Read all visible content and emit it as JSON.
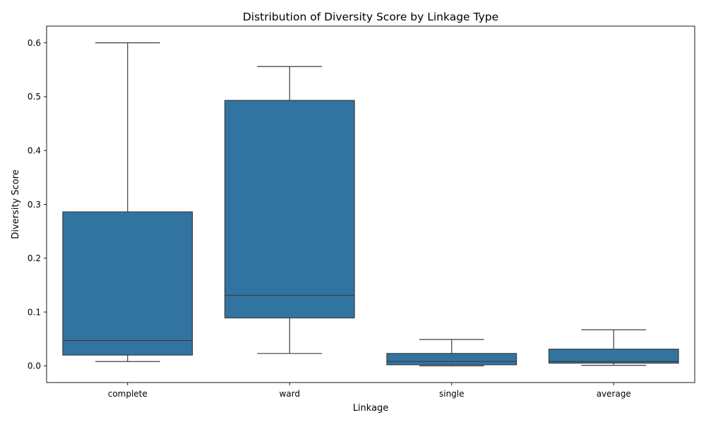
{
  "chart_data": {
    "type": "box",
    "title": "Distribution of Diversity Score by Linkage Type",
    "xlabel": "Linkage",
    "ylabel": "Diversity Score",
    "ylim": [
      -0.031,
      0.631
    ],
    "yticks": [
      "0.0",
      "0.1",
      "0.2",
      "0.3",
      "0.4",
      "0.5",
      "0.6"
    ],
    "grid": false,
    "box_color": "#3274a1",
    "line_color": "#3d3d3d",
    "categories": [
      "complete",
      "ward",
      "single",
      "average"
    ],
    "boxes": [
      {
        "category": "complete",
        "whisker_low": 0.008,
        "q1": 0.02,
        "median": 0.047,
        "q3": 0.286,
        "whisker_high": 0.6
      },
      {
        "category": "ward",
        "whisker_low": 0.023,
        "q1": 0.089,
        "median": 0.131,
        "q3": 0.493,
        "whisker_high": 0.556
      },
      {
        "category": "single",
        "whisker_low": 0.0,
        "q1": 0.002,
        "median": 0.008,
        "q3": 0.023,
        "whisker_high": 0.049
      },
      {
        "category": "average",
        "whisker_low": 0.001,
        "q1": 0.005,
        "median": 0.008,
        "q3": 0.031,
        "whisker_high": 0.067
      }
    ]
  }
}
